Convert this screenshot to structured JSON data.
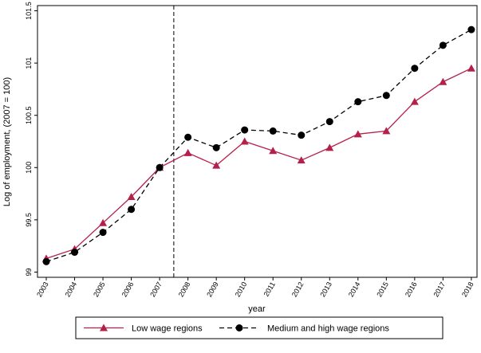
{
  "chart_data": {
    "type": "line",
    "ylabel": "Log of employment, (2007 = 100)",
    "xlabel": "year",
    "x": [
      2003,
      2004,
      2005,
      2006,
      2007,
      2008,
      2009,
      2010,
      2011,
      2012,
      2013,
      2014,
      2015,
      2016,
      2017,
      2018
    ],
    "series": [
      {
        "name": "Low wage regions",
        "color": "#b5204a",
        "marker": "triangle",
        "dashed": false,
        "values": [
          99.13,
          99.22,
          99.47,
          99.72,
          100.0,
          100.14,
          100.02,
          100.25,
          100.16,
          100.07,
          100.19,
          100.32,
          100.35,
          100.63,
          100.82,
          100.95
        ]
      },
      {
        "name": "Medium and high wage regions",
        "color": "#000000",
        "marker": "circle",
        "dashed": true,
        "values": [
          99.1,
          99.19,
          99.38,
          99.6,
          100.0,
          100.29,
          100.19,
          100.36,
          100.35,
          100.31,
          100.44,
          100.63,
          100.69,
          100.95,
          101.17,
          101.32
        ]
      }
    ],
    "xlim": [
      2002.69,
      2018.2
    ],
    "xticks": [
      2003,
      2004,
      2005,
      2006,
      2007,
      2008,
      2009,
      2010,
      2011,
      2012,
      2013,
      2014,
      2015,
      2016,
      2017,
      2018
    ],
    "ylim": [
      98.95,
      101.55
    ],
    "yticks": [
      99,
      99.5,
      100,
      100.5,
      101,
      101.5
    ],
    "vline": 2007.5,
    "legend": "bottom"
  }
}
